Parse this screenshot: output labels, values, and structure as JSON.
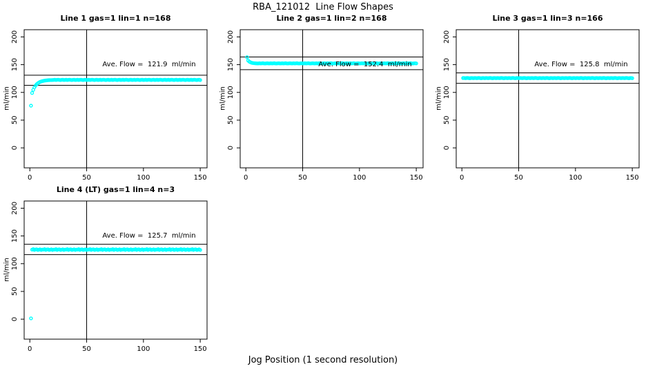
{
  "main_title": "RBA_121012  Line Flow Shapes",
  "x_axis_label": "Jog Position (1 second resolution)",
  "colors": {
    "points": "#00FFFF",
    "frame": "#000000",
    "background": "#FFFFFF"
  },
  "chart_data": [
    {
      "type": "scatter",
      "title": "Line 1 gas=1 lin=1 n=168",
      "annotation": "Ave. Flow =  121.9  ml/min",
      "ave_flow": 121.9,
      "ylabel": "ml/min",
      "x_ticks": [
        0,
        50,
        100,
        150
      ],
      "y_ticks": [
        0,
        50,
        100,
        150,
        200
      ],
      "xlim": [
        -5,
        156
      ],
      "ylim": [
        -36,
        213
      ],
      "grid": false,
      "vline_x": 50,
      "hlines": [
        131.0,
        112.8
      ],
      "x_range": [
        1,
        150
      ],
      "y": [
        76,
        99,
        104.5,
        109,
        112.2,
        114.6,
        116.4,
        117.8,
        118.9,
        119.7,
        120.3,
        120.8,
        121.2,
        121.5,
        121.8,
        122,
        122.1,
        122.2,
        122.3,
        122.4,
        122.5,
        122.7,
        122.4,
        122.6,
        122.8,
        122.5,
        122.3,
        122.6,
        122.7,
        122.4,
        122.5,
        122.7,
        122.4,
        122.6,
        122.8,
        122.5,
        122.3,
        122.6,
        122.7,
        122.4,
        122.5,
        122.7,
        122.4,
        122.6,
        122.8,
        122.5,
        122.3,
        122.6,
        122.7,
        122.4,
        122.5,
        122.7,
        122.4,
        122.6,
        122.8,
        122.5,
        122.3,
        122.6,
        122.7,
        122.4,
        122.5,
        122.7,
        122.4,
        122.6,
        122.8,
        122.5,
        122.3,
        122.6,
        122.7,
        122.4,
        122.5,
        122.7,
        122.4,
        122.6,
        122.8,
        122.5,
        122.3,
        122.6,
        122.7,
        122.4,
        122.5,
        122.7,
        122.4,
        122.6,
        122.8,
        122.5,
        122.3,
        122.6,
        122.7,
        122.4,
        122.5,
        122.7,
        122.4,
        122.6,
        122.8,
        122.5,
        122.3,
        122.6,
        122.7,
        122.4,
        122.5,
        122.7,
        122.4,
        122.6,
        122.8,
        122.5,
        122.3,
        122.6,
        122.7,
        122.4,
        122.5,
        122.7,
        122.4,
        122.6,
        122.8,
        122.5,
        122.3,
        122.6,
        122.7,
        122.4,
        122.5,
        122.7,
        122.4,
        122.6,
        122.8,
        122.5,
        122.3,
        122.6,
        122.7,
        122.4,
        122.5,
        122.7,
        122.4,
        122.6,
        122.8,
        122.5,
        122.3,
        122.6,
        122.7,
        122.4,
        122.5,
        122.7,
        122.4,
        122.6,
        122.8,
        122.5,
        122.3,
        122.6,
        122.7,
        122.2
      ]
    },
    {
      "type": "scatter",
      "title": "Line 2 gas=1 lin=2 n=168",
      "annotation": "Ave. Flow =  152.4  ml/min",
      "ave_flow": 152.4,
      "ylabel": "ml/min",
      "x_ticks": [
        0,
        50,
        100,
        150
      ],
      "y_ticks": [
        0,
        50,
        100,
        150,
        200
      ],
      "xlim": [
        -5,
        156
      ],
      "ylim": [
        -36,
        213
      ],
      "grid": false,
      "vline_x": 50,
      "hlines": [
        163.8,
        141.0
      ],
      "x_range": [
        1,
        150
      ],
      "y": [
        163.5,
        157.5,
        155.5,
        154.3,
        153.5,
        153,
        152.7,
        152.5,
        152.4,
        152.3,
        152.3,
        152.5,
        152.2,
        152.4,
        152.6,
        152.3,
        152.1,
        152.4,
        152.5,
        152.2,
        152.3,
        152.5,
        152.2,
        152.4,
        152.6,
        152.3,
        152.1,
        152.4,
        152.5,
        152.2,
        152.3,
        152.5,
        152.2,
        152.4,
        152.6,
        152.3,
        152.1,
        152.4,
        152.5,
        152.2,
        152.3,
        152.5,
        152.2,
        152.4,
        152.6,
        152.3,
        152.1,
        152.4,
        152.5,
        152.2,
        152.3,
        152.5,
        152.2,
        152.4,
        152.6,
        152.3,
        152.1,
        152.4,
        152.5,
        152.2,
        152.3,
        152.5,
        152.2,
        152.4,
        152.6,
        152.3,
        152.1,
        152.4,
        152.5,
        152.2,
        152.3,
        152.5,
        152.2,
        152.4,
        152.6,
        152.3,
        152.1,
        152.4,
        152.5,
        152.2,
        152.3,
        152.5,
        152.2,
        152.4,
        152.6,
        152.3,
        152.1,
        152.4,
        152.5,
        152.2,
        152.3,
        152.5,
        152.2,
        152.4,
        152.6,
        152.3,
        152.1,
        152.4,
        152.5,
        152.2,
        152.3,
        152.5,
        152.2,
        152.4,
        152.6,
        152.3,
        152.1,
        152.4,
        152.5,
        152.2,
        152.3,
        152.5,
        152.2,
        152.4,
        152.6,
        152.3,
        152.1,
        152.4,
        152.5,
        152.2,
        152.3,
        152.5,
        152.2,
        152.4,
        152.6,
        152.3,
        152.1,
        152.4,
        152.5,
        152.2,
        152.3,
        152.5,
        152.2,
        152.4,
        152.6,
        152.3,
        152.1,
        152.4,
        152.5,
        152.2,
        152.3,
        152.5,
        152.2,
        152.4,
        152.6,
        152.3,
        152.1,
        152.4,
        152.5,
        152.2
      ]
    },
    {
      "type": "scatter",
      "title": "Line 3 gas=1 lin=3 n=166",
      "annotation": "Ave. Flow =  125.8  ml/min",
      "ave_flow": 125.8,
      "ylabel": "ml/min",
      "x_ticks": [
        0,
        50,
        100,
        150
      ],
      "y_ticks": [
        0,
        50,
        100,
        150,
        200
      ],
      "xlim": [
        -5,
        156
      ],
      "ylim": [
        -36,
        213
      ],
      "grid": false,
      "vline_x": 50,
      "hlines": [
        135.2,
        116.4
      ],
      "x_range": [
        1,
        150
      ],
      "y": [
        125.8,
        126,
        125.6,
        125.9,
        126.1,
        125.7,
        125.5,
        125.8,
        126,
        125.6,
        125.8,
        126,
        125.6,
        125.9,
        126.1,
        125.7,
        125.5,
        125.8,
        126,
        125.6,
        125.8,
        126,
        125.6,
        125.9,
        126.1,
        125.7,
        125.5,
        125.8,
        126,
        125.6,
        125.8,
        126,
        125.6,
        125.9,
        126.1,
        125.7,
        125.5,
        125.8,
        126,
        125.6,
        125.8,
        126,
        125.6,
        125.9,
        126.1,
        125.7,
        125.5,
        125.8,
        126,
        125.6,
        125.8,
        126,
        125.6,
        125.9,
        126.1,
        125.7,
        125.5,
        125.8,
        126,
        125.6,
        125.8,
        126,
        125.6,
        125.9,
        126.1,
        125.7,
        125.5,
        125.8,
        126,
        125.6,
        125.8,
        126,
        125.6,
        125.9,
        126.1,
        125.7,
        125.5,
        125.8,
        126,
        125.6,
        125.8,
        126,
        125.6,
        125.9,
        126.1,
        125.7,
        125.5,
        125.8,
        126,
        125.6,
        125.8,
        126,
        125.6,
        125.9,
        126.1,
        125.7,
        125.5,
        125.8,
        126,
        125.6,
        125.8,
        126,
        125.6,
        125.9,
        126.1,
        125.7,
        125.5,
        125.8,
        126,
        125.6,
        125.8,
        126,
        125.6,
        125.9,
        126.1,
        125.7,
        125.5,
        125.8,
        126,
        125.6,
        125.8,
        126,
        125.6,
        125.9,
        126.1,
        125.7,
        125.5,
        125.8,
        126,
        125.6,
        125.8,
        126,
        125.6,
        125.9,
        126.1,
        125.7,
        125.5,
        125.8,
        126,
        125.6,
        125.8,
        126,
        125.6,
        125.9,
        126.1,
        125.7,
        125.5,
        125.8,
        126,
        125.6
      ]
    },
    {
      "type": "scatter",
      "title": "Line 4 (LT) gas=1 lin=4 n=3",
      "annotation": "Ave. Flow =  125.7  ml/min",
      "ave_flow": 125.7,
      "ylabel": "ml/min",
      "x_ticks": [
        0,
        50,
        100,
        150
      ],
      "y_ticks": [
        0,
        50,
        100,
        150,
        200
      ],
      "xlim": [
        -5,
        156
      ],
      "ylim": [
        -36,
        213
      ],
      "grid": false,
      "vline_x": 50,
      "hlines": [
        135.1,
        116.3
      ],
      "x_range": [
        1,
        150
      ],
      "y": [
        1.5,
        125.4,
        126.2,
        124.8,
        125.6,
        126,
        124.9,
        125.2,
        125.9,
        124.7,
        125.5,
        125.4,
        126.2,
        124.8,
        125.6,
        126,
        124.9,
        125.2,
        125.9,
        124.7,
        125.5,
        125.4,
        126.2,
        124.8,
        125.6,
        126,
        124.9,
        125.2,
        125.9,
        124.7,
        125.5,
        125.4,
        126.2,
        124.8,
        125.6,
        126,
        124.9,
        125.2,
        125.9,
        124.7,
        125.5,
        125.4,
        126.2,
        124.8,
        125.6,
        126,
        124.9,
        125.2,
        125.9,
        124.7,
        125.5,
        125.4,
        126.2,
        124.8,
        125.6,
        126,
        124.9,
        125.2,
        125.9,
        124.7,
        125.5,
        125.4,
        126.2,
        124.8,
        125.6,
        126,
        124.9,
        125.2,
        125.9,
        124.7,
        125.5,
        125.4,
        126.2,
        124.8,
        125.6,
        126,
        124.9,
        125.2,
        125.9,
        124.7,
        125.5,
        125.4,
        126.2,
        124.8,
        125.6,
        126,
        124.9,
        125.2,
        125.9,
        124.7,
        125.5,
        125.4,
        126.2,
        124.8,
        125.6,
        126,
        124.9,
        125.2,
        125.9,
        124.7,
        125.5,
        125.4,
        126.2,
        124.8,
        125.6,
        126,
        124.9,
        125.2,
        125.9,
        124.7,
        125.5,
        125.4,
        126.2,
        124.8,
        125.6,
        126,
        124.9,
        125.2,
        125.9,
        124.7,
        125.5,
        125.4,
        126.2,
        124.8,
        125.6,
        126,
        124.9,
        125.2,
        125.9,
        124.7,
        125.5,
        125.4,
        126.2,
        124.8,
        125.6,
        126,
        124.9,
        125.2,
        125.9,
        124.7,
        125.5,
        125.4,
        126.2,
        124.8,
        125.6,
        126,
        124.9,
        125.2,
        125.9,
        124.7
      ]
    }
  ]
}
